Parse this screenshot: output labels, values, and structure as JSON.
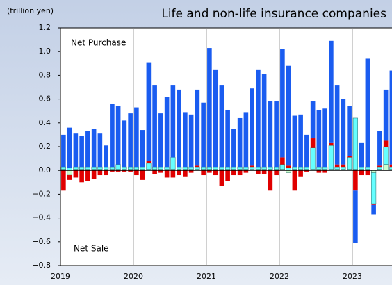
{
  "chart_data": {
    "type": "stacked_bar",
    "title": "Life and non-life insurance companies",
    "unit_label": "(trillion yen)",
    "annotations": [
      "Net Purchase",
      "Net Sale"
    ],
    "categories": [
      "2019",
      null,
      null,
      null,
      null,
      null,
      null,
      null,
      null,
      null,
      null,
      null,
      "2020",
      null,
      null,
      null,
      null,
      null,
      null,
      null,
      null,
      null,
      null,
      null,
      "2021",
      null,
      null,
      null,
      null,
      null,
      null,
      null,
      null,
      null,
      null,
      null,
      "2022",
      null,
      null,
      null,
      null,
      null,
      null,
      null,
      null,
      null,
      null,
      null,
      "2023",
      null,
      null,
      null,
      null,
      null,
      null
    ],
    "series": [
      {
        "color": "#ccffcc",
        "values": [
          0.01,
          -0.04,
          0.01,
          0.01,
          0.01,
          0.01,
          0.01,
          0.01,
          0.01,
          0.01,
          0.01,
          0.01,
          0.01,
          0.01,
          0.01,
          0.01,
          0.01,
          0.01,
          0.01,
          0.01,
          0.01,
          0.01,
          0.01,
          0.01,
          0.01,
          0.01,
          0.01,
          0.01,
          0.01,
          0.01,
          0.01,
          0.01,
          0.01,
          0.01,
          0.01,
          0.01,
          0.01,
          -0.02,
          0.01,
          0.01,
          0.01,
          0.01,
          0.01,
          0.01,
          0.01,
          0.01,
          0.01,
          0.01,
          0.01,
          0.01,
          0.01,
          -0.02,
          0.01,
          0.05,
          0.01
        ]
      },
      {
        "color": "#66ffff",
        "values": [
          0.02,
          0.02,
          0.02,
          0.02,
          0.02,
          0.02,
          0.02,
          0.02,
          0.02,
          0.04,
          0.02,
          0.02,
          0.02,
          0.02,
          0.05,
          0.02,
          0.02,
          0.02,
          0.1,
          0.02,
          0.02,
          0.02,
          0.02,
          0.02,
          0.02,
          0.02,
          0.02,
          0.02,
          0.02,
          0.02,
          0.02,
          0.02,
          0.02,
          0.02,
          0.02,
          0.02,
          0.04,
          0.02,
          0.02,
          0.02,
          0.02,
          0.18,
          0.02,
          0.02,
          0.2,
          0.02,
          0.02,
          0.1,
          0.43,
          0.02,
          0.02,
          -0.26,
          0.02,
          0.15,
          0.02
        ]
      },
      {
        "color": "#e00000",
        "values": [
          -0.17,
          -0.04,
          -0.06,
          -0.1,
          -0.09,
          -0.07,
          -0.04,
          -0.04,
          -0.01,
          -0.01,
          -0.01,
          -0.01,
          -0.04,
          -0.08,
          0.02,
          -0.03,
          -0.02,
          -0.06,
          -0.06,
          -0.04,
          -0.05,
          -0.02,
          0.01,
          -0.04,
          -0.02,
          -0.04,
          -0.13,
          -0.09,
          -0.04,
          -0.04,
          -0.02,
          0.01,
          -0.03,
          -0.03,
          -0.17,
          -0.04,
          0.06,
          0.02,
          -0.17,
          -0.05,
          -0.01,
          0.08,
          -0.02,
          -0.02,
          0.02,
          0.02,
          0.02,
          0.01,
          -0.17,
          -0.04,
          -0.04,
          -0.01,
          0.01,
          0.05,
          0.02
        ]
      },
      {
        "color": "#1a5cf0",
        "values": [
          0.27,
          0.34,
          0.28,
          0.26,
          0.3,
          0.32,
          0.28,
          0.18,
          0.53,
          0.49,
          0.39,
          0.45,
          0.5,
          0.31,
          0.83,
          0.69,
          0.45,
          0.59,
          0.61,
          0.65,
          0.46,
          0.44,
          0.64,
          0.54,
          1.0,
          0.82,
          0.69,
          0.48,
          0.32,
          0.41,
          0.46,
          0.65,
          0.82,
          0.78,
          0.55,
          0.55,
          0.91,
          0.84,
          0.43,
          0.44,
          0.27,
          0.31,
          0.48,
          0.49,
          0.86,
          0.67,
          0.55,
          0.42,
          -0.44,
          0.2,
          0.91,
          -0.08,
          0.29,
          0.43,
          0.79
        ]
      }
    ],
    "ylim": [
      -0.8,
      1.2
    ],
    "yticks": [
      {
        "value": -0.8,
        "label": "−0.8"
      },
      {
        "value": -0.6,
        "label": "−0.6"
      },
      {
        "value": -0.4,
        "label": "−0.4"
      },
      {
        "value": -0.2,
        "label": "−0.2"
      },
      {
        "value": 0,
        "label": "0.0"
      },
      0.2,
      0.4,
      0.6,
      0.8,
      {
        "value": 1,
        "label": "1.0"
      },
      1.2
    ]
  }
}
